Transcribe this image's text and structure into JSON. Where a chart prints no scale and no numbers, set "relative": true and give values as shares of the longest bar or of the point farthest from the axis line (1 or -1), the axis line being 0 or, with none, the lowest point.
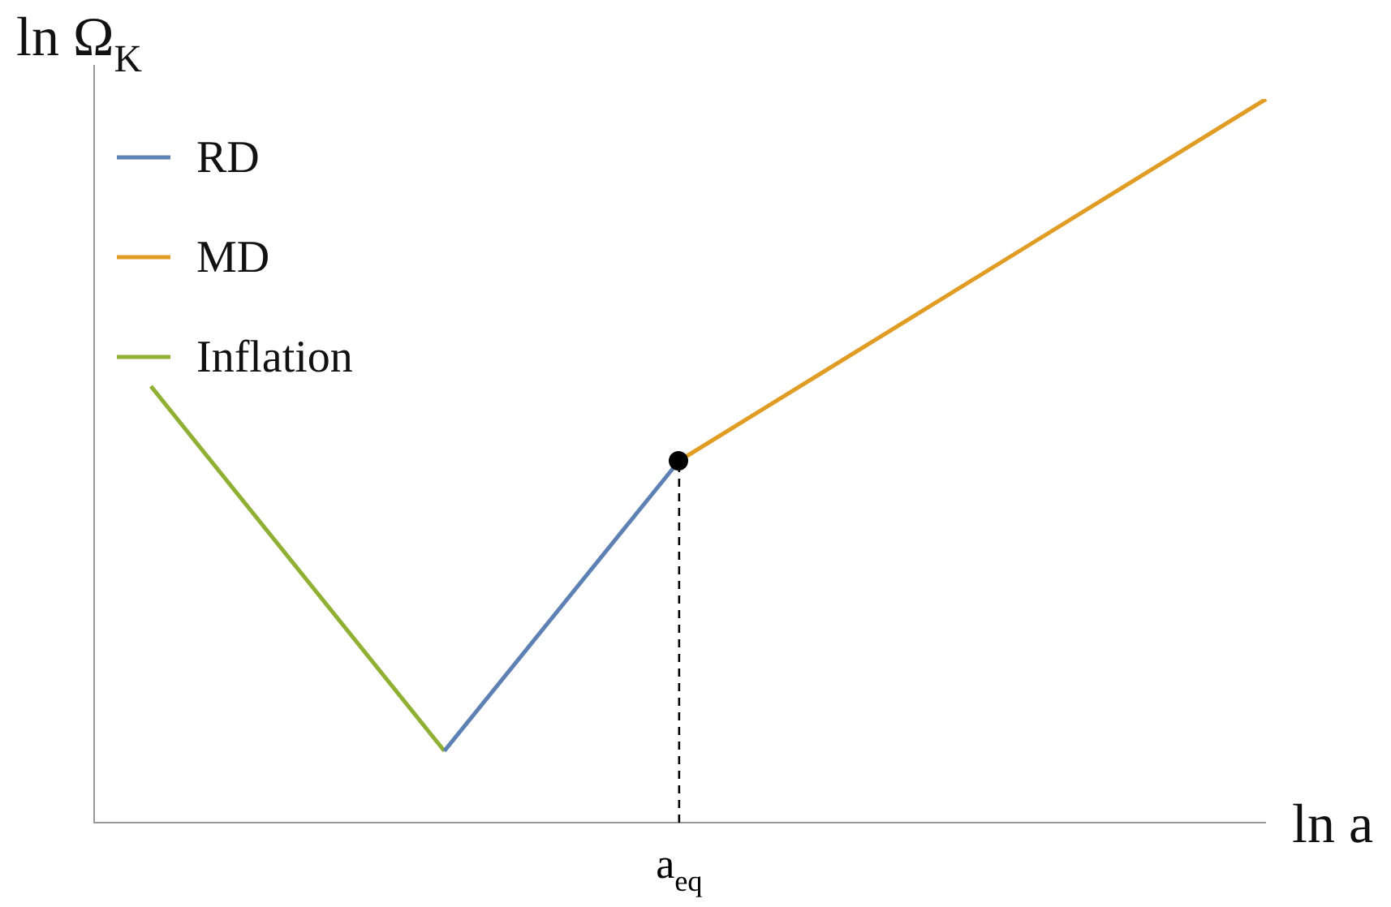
{
  "chart_data": {
    "type": "line",
    "relative": true,
    "xlabel": "ln a",
    "ylabel": "ln Ω$_{K}$",
    "legend": "top left",
    "categories": [
      null,
      null,
      null,
      null,
      null,
      null,
      null,
      null,
      null,
      null,
      null,
      null,
      null,
      null,
      null,
      null,
      null,
      null,
      null,
      null
    ],
    "series": [
      {
        "name": "RD",
        "color": "#5e81b5",
        "values": [
          null,
          null,
          null,
          null,
          null,
          0.099,
          null,
          null,
          null,
          0.5,
          null,
          null,
          null,
          null,
          null,
          null,
          null,
          null,
          null,
          null
        ]
      },
      {
        "name": "MD",
        "color": "#e19c24",
        "values": [
          null,
          null,
          null,
          null,
          null,
          null,
          null,
          null,
          null,
          0.5,
          null,
          null,
          null,
          null,
          null,
          null,
          null,
          null,
          null,
          1
        ]
      },
      {
        "name": "Inflation",
        "color": "#8fb032",
        "values": [
          0.603,
          null,
          null,
          null,
          null,
          0.099,
          null,
          null,
          null,
          null,
          null,
          null,
          null,
          null,
          null,
          null,
          null,
          null,
          null,
          null
        ]
      }
    ],
    "ref_lines": [
      {
        "axis": "x",
        "label": "a$_{eq}$",
        "line_style": "dashed",
        "color": "#000000"
      }
    ]
  }
}
